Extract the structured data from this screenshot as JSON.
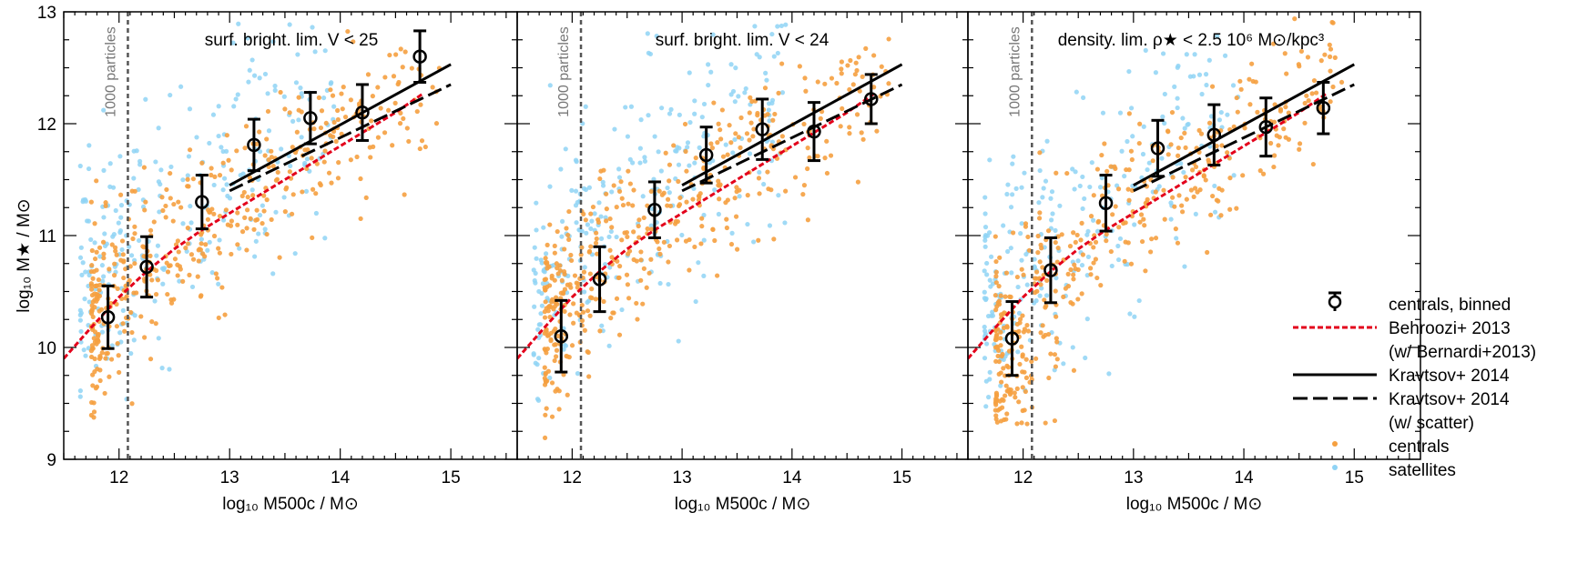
{
  "figure": {
    "ylabel": "log₁₀ M★ / M⊙",
    "xlabel": "log₁₀ M500c / M⊙",
    "particle_label": "1000 particles"
  },
  "legend": {
    "placement": "lower-right of third panel",
    "entries": [
      {
        "label": "centrals, binned",
        "kind": "errorbar-circle"
      },
      {
        "label": "Behroozi+ 2013",
        "kind": "red-dashed"
      },
      {
        "label": "(w/ Bernardi+2013)",
        "kind": "none"
      },
      {
        "label": "Kravtsov+ 2014",
        "kind": "black-solid"
      },
      {
        "label": "Kravtsov+ 2014",
        "kind": "black-dashed"
      },
      {
        "label": "(w/ scatter)",
        "kind": "none"
      },
      {
        "label": "centrals",
        "kind": "orange-dot"
      },
      {
        "label": "satellites",
        "kind": "blue-dot"
      }
    ]
  },
  "colors": {
    "centrals": "#f5a040",
    "satellites": "#8fd3f5",
    "behroozi": "#e3001b",
    "kravtsov": "#000000",
    "particle_line": "#555555"
  },
  "chart_data": [
    {
      "type": "scatter",
      "title": "surf. bright. lim. V < 25",
      "xlim": [
        11.5,
        15.6
      ],
      "ylim": [
        9,
        13
      ],
      "xticks": [
        "12",
        "13",
        "14",
        "15"
      ],
      "yticks": [
        "9",
        "10",
        "11",
        "12",
        "13"
      ],
      "particle_limit_x": 12.08,
      "binned": {
        "x": [
          11.9,
          12.25,
          12.75,
          13.22,
          13.73,
          14.2,
          14.72
        ],
        "y": [
          10.27,
          10.72,
          11.3,
          11.81,
          12.05,
          12.1,
          12.6
        ],
        "err": [
          0.28,
          0.27,
          0.24,
          0.23,
          0.23,
          0.25,
          0.23
        ]
      },
      "behroozi": {
        "x": [
          11.5,
          11.75,
          12.0,
          12.25,
          12.5,
          12.75,
          13.0,
          13.5,
          14.0,
          14.5,
          14.75
        ],
        "y": [
          9.9,
          10.18,
          10.45,
          10.68,
          10.88,
          11.05,
          11.2,
          11.5,
          11.8,
          12.1,
          12.27
        ]
      },
      "kravtsov": {
        "x": [
          13.0,
          15.0
        ],
        "y": [
          11.45,
          12.53
        ]
      },
      "kravtsov_scatter": {
        "x": [
          13.0,
          15.0
        ],
        "y": [
          11.4,
          12.35
        ]
      }
    },
    {
      "type": "scatter",
      "title": "surf. bright. lim. V < 24",
      "xlim": [
        11.5,
        15.6
      ],
      "ylim": [
        9,
        13
      ],
      "xticks": [
        "12",
        "13",
        "14",
        "15"
      ],
      "yticks": [
        "9",
        "10",
        "11",
        "12",
        "13"
      ],
      "particle_limit_x": 12.08,
      "binned": {
        "x": [
          11.9,
          12.25,
          12.75,
          13.22,
          13.73,
          14.2,
          14.72
        ],
        "y": [
          10.1,
          10.61,
          11.23,
          11.72,
          11.95,
          11.93,
          12.22
        ],
        "err": [
          0.32,
          0.29,
          0.25,
          0.25,
          0.27,
          0.26,
          0.22
        ]
      },
      "behroozi": {
        "x": [
          11.5,
          11.75,
          12.0,
          12.25,
          12.5,
          12.75,
          13.0,
          13.5,
          14.0,
          14.5,
          14.75
        ],
        "y": [
          9.9,
          10.18,
          10.45,
          10.68,
          10.88,
          11.05,
          11.2,
          11.5,
          11.8,
          12.1,
          12.27
        ]
      },
      "kravtsov": {
        "x": [
          13.0,
          15.0
        ],
        "y": [
          11.45,
          12.53
        ]
      },
      "kravtsov_scatter": {
        "x": [
          13.0,
          15.0
        ],
        "y": [
          11.4,
          12.35
        ]
      }
    },
    {
      "type": "scatter",
      "title": "density. lim. ρ★ < 2.5 10⁶ M⊙/kpc³",
      "xlim": [
        11.5,
        15.6
      ],
      "ylim": [
        9,
        13
      ],
      "xticks": [
        "12",
        "13",
        "14",
        "15"
      ],
      "yticks": [
        "9",
        "10",
        "11",
        "12",
        "13"
      ],
      "particle_limit_x": 12.08,
      "binned": {
        "x": [
          11.9,
          12.25,
          12.75,
          13.22,
          13.73,
          14.2,
          14.72
        ],
        "y": [
          10.08,
          10.69,
          11.29,
          11.78,
          11.9,
          11.97,
          12.14
        ],
        "err": [
          0.33,
          0.29,
          0.25,
          0.25,
          0.27,
          0.26,
          0.23
        ]
      },
      "behroozi": {
        "x": [
          11.5,
          11.75,
          12.0,
          12.25,
          12.5,
          12.75,
          13.0,
          13.5,
          14.0,
          14.5,
          14.75
        ],
        "y": [
          9.9,
          10.18,
          10.45,
          10.68,
          10.88,
          11.05,
          11.2,
          11.5,
          11.8,
          12.1,
          12.27
        ]
      },
      "kravtsov": {
        "x": [
          13.0,
          15.0
        ],
        "y": [
          11.45,
          12.53
        ]
      },
      "kravtsov_scatter": {
        "x": [
          13.0,
          15.0
        ],
        "y": [
          11.4,
          12.35
        ]
      }
    }
  ]
}
